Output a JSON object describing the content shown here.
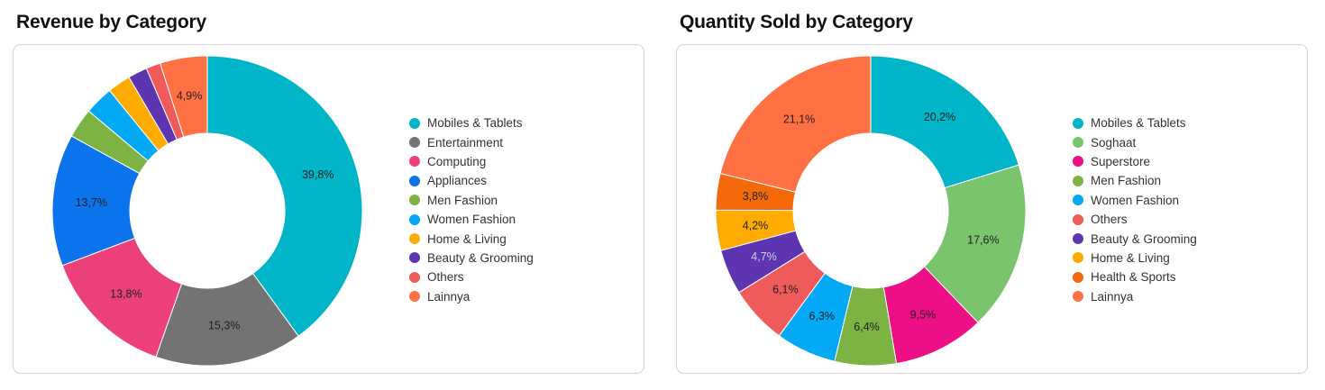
{
  "chart_data": [
    {
      "type": "pie",
      "title": "Revenue by Category",
      "categories": [
        "Mobiles & Tablets",
        "Entertainment",
        "Computing",
        "Appliances",
        "Men Fashion",
        "Women Fashion",
        "Home & Living",
        "Beauty & Grooming",
        "Others",
        "Lainnya"
      ],
      "values": [
        39.8,
        15.3,
        13.8,
        13.7,
        3.1,
        3.0,
        2.4,
        2.0,
        1.5,
        4.9
      ],
      "value_labels": [
        "39,8%",
        "15,3%",
        "13,8%",
        "13,7%",
        "",
        "",
        "",
        "",
        "",
        "4,9%"
      ],
      "colors": [
        "#00b5c8",
        "#737373",
        "#ec407a",
        "#0b73eb",
        "#7cb342",
        "#03a9f4",
        "#ffab00",
        "#5e35b1",
        "#ef5b5b",
        "#ff7043"
      ],
      "label_colors": [
        "#222222",
        "#222222",
        "#222222",
        "#222222",
        "#222222",
        "#222222",
        "#222222",
        "#222222",
        "#222222",
        "#222222"
      ],
      "legend_position": "right"
    },
    {
      "type": "pie",
      "title": "Quantity Sold by Category",
      "categories": [
        "Mobiles & Tablets",
        "Soghaat",
        "Superstore",
        "Men Fashion",
        "Women Fashion",
        "Others",
        "Beauty & Grooming",
        "Home & Living",
        "Health & Sports",
        "Lainnya"
      ],
      "values": [
        20.2,
        17.6,
        9.5,
        6.4,
        6.3,
        6.1,
        4.7,
        4.2,
        3.8,
        21.1
      ],
      "value_labels": [
        "20,2%",
        "17,6%",
        "9,5%",
        "6,4%",
        "6,3%",
        "6,1%",
        "4,7%",
        "4,2%",
        "3,8%",
        "21,1%"
      ],
      "colors": [
        "#00b5c8",
        "#7bc46e",
        "#ec0f85",
        "#7cb342",
        "#03a9f4",
        "#ef5b5b",
        "#5e35b1",
        "#ffab00",
        "#f46a0a",
        "#ff7043"
      ],
      "label_colors": [
        "#222222",
        "#222222",
        "#222222",
        "#222222",
        "#222222",
        "#222222",
        "#d0d0f0",
        "#222222",
        "#222222",
        "#222222"
      ],
      "legend_position": "right"
    }
  ]
}
